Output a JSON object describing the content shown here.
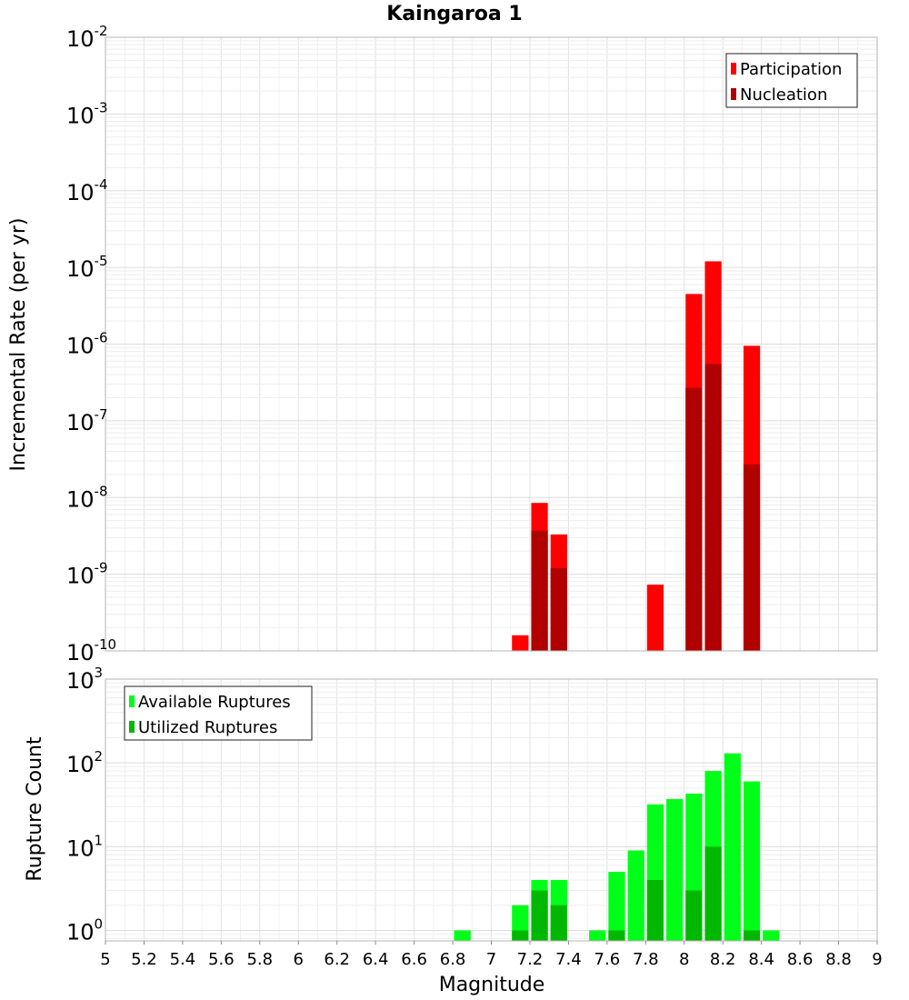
{
  "chart_data": [
    {
      "type": "bar",
      "title": "Kaingaroa 1",
      "xlabel": "",
      "ylabel": "Incremental Rate (per yr)",
      "yscale": "log",
      "ylim": [
        1e-10,
        0.01
      ],
      "xlim": [
        5,
        9
      ],
      "grid": true,
      "legend_position": "top-right",
      "bin_width": 0.1,
      "x_tick_labels": [],
      "y_tick_exponents": [
        "-10",
        "-9",
        "-8",
        "-7",
        "-6",
        "-5",
        "-4",
        "-3",
        "-2"
      ],
      "series": [
        {
          "name": "Participation",
          "color": "#ff0000",
          "points": [
            {
              "x": 7.15,
              "y": 1.6e-10
            },
            {
              "x": 7.25,
              "y": 8.5e-09
            },
            {
              "x": 7.35,
              "y": 3.3e-09
            },
            {
              "x": 7.85,
              "y": 7.3e-10
            },
            {
              "x": 8.05,
              "y": 4.5e-06
            },
            {
              "x": 8.15,
              "y": 1.2e-05
            },
            {
              "x": 8.35,
              "y": 9.5e-07
            }
          ]
        },
        {
          "name": "Nucleation",
          "color": "#b00000",
          "points": [
            {
              "x": 7.25,
              "y": 3.7e-09
            },
            {
              "x": 7.35,
              "y": 1.2e-09
            },
            {
              "x": 8.05,
              "y": 2.7e-07
            },
            {
              "x": 8.15,
              "y": 5.5e-07
            },
            {
              "x": 8.35,
              "y": 2.7e-08
            }
          ]
        }
      ]
    },
    {
      "type": "bar",
      "title": "",
      "xlabel": "Magnitude",
      "ylabel": "Rupture Count",
      "yscale": "log",
      "ylim": [
        0.75,
        1000
      ],
      "xlim": [
        5,
        9
      ],
      "grid": true,
      "legend_position": "top-left",
      "bin_width": 0.1,
      "x_tick_labels": [
        "5",
        "5.2",
        "5.4",
        "5.6",
        "5.8",
        "6",
        "6.2",
        "6.4",
        "6.6",
        "6.8",
        "7",
        "7.2",
        "7.4",
        "7.6",
        "7.8",
        "8",
        "8.2",
        "8.4",
        "8.6",
        "8.8",
        "9"
      ],
      "y_tick_exponents": [
        "0",
        "1",
        "2",
        "3"
      ],
      "series": [
        {
          "name": "Available Ruptures",
          "color": "#00ff18",
          "points": [
            {
              "x": 6.85,
              "y": 1
            },
            {
              "x": 7.15,
              "y": 2
            },
            {
              "x": 7.25,
              "y": 4
            },
            {
              "x": 7.35,
              "y": 4
            },
            {
              "x": 7.55,
              "y": 1
            },
            {
              "x": 7.65,
              "y": 5
            },
            {
              "x": 7.75,
              "y": 9
            },
            {
              "x": 7.85,
              "y": 32
            },
            {
              "x": 7.95,
              "y": 37
            },
            {
              "x": 8.05,
              "y": 43
            },
            {
              "x": 8.15,
              "y": 80
            },
            {
              "x": 8.25,
              "y": 130
            },
            {
              "x": 8.35,
              "y": 60
            },
            {
              "x": 8.45,
              "y": 1
            }
          ]
        },
        {
          "name": "Utilized Ruptures",
          "color": "#00b800",
          "points": [
            {
              "x": 7.15,
              "y": 1
            },
            {
              "x": 7.25,
              "y": 3
            },
            {
              "x": 7.35,
              "y": 2
            },
            {
              "x": 7.65,
              "y": 1
            },
            {
              "x": 7.85,
              "y": 4
            },
            {
              "x": 8.05,
              "y": 3
            },
            {
              "x": 8.15,
              "y": 10
            },
            {
              "x": 8.35,
              "y": 1
            }
          ]
        }
      ]
    }
  ]
}
